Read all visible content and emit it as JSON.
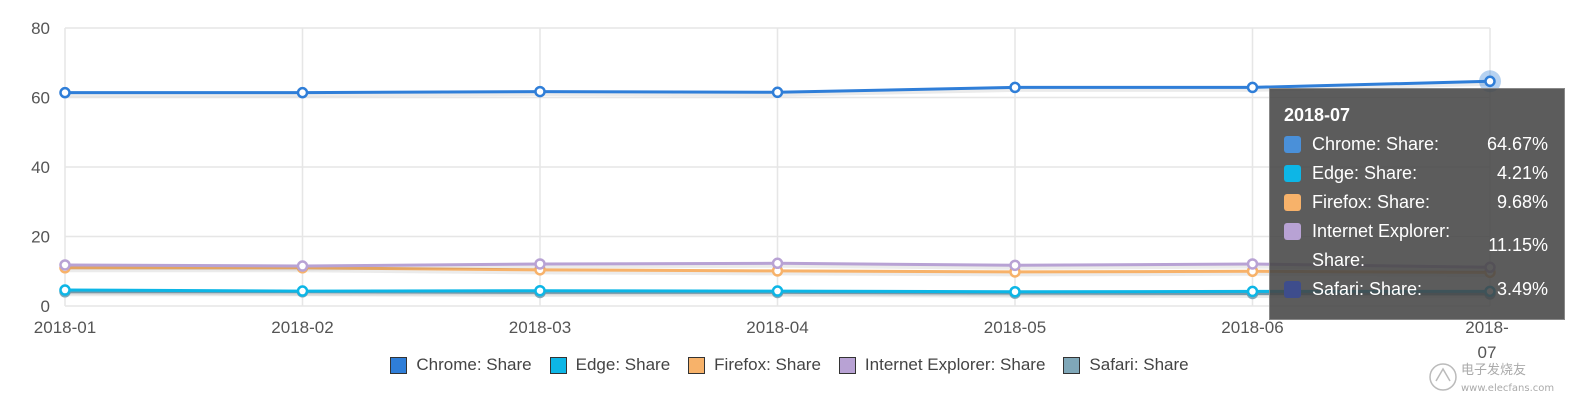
{
  "chart_data": {
    "type": "line",
    "x": [
      "2018-01",
      "2018-02",
      "2018-03",
      "2018-04",
      "2018-05",
      "2018-06",
      "2018-07"
    ],
    "yticks": [
      "80",
      "60",
      "40",
      "20",
      "0"
    ],
    "ylim": [
      0,
      80
    ],
    "grid": true,
    "legend_position": "bottom",
    "series": [
      {
        "name": "Chrome: Share",
        "color": "#2f7ed8",
        "values": [
          61.4,
          61.4,
          61.7,
          61.5,
          62.9,
          62.9,
          64.67
        ]
      },
      {
        "name": "Edge: Share",
        "color": "#0db6e6",
        "values": [
          4.6,
          4.3,
          4.4,
          4.3,
          4.1,
          4.2,
          4.21
        ]
      },
      {
        "name": "Firefox: Share",
        "color": "#f7b26a",
        "values": [
          11.0,
          11.0,
          10.4,
          10.1,
          9.8,
          10.0,
          9.68
        ]
      },
      {
        "name": "Internet Explorer: Share",
        "color": "#b8a2d4",
        "values": [
          11.8,
          11.5,
          12.1,
          12.3,
          11.7,
          12.1,
          11.15
        ]
      },
      {
        "name": "Safari: Share",
        "color": "#7fa7b8",
        "values": [
          4.1,
          4.1,
          3.9,
          3.9,
          3.7,
          3.6,
          3.49
        ]
      }
    ]
  },
  "tooltip": {
    "title": "2018-07",
    "rows": [
      {
        "label": "Chrome: Share:",
        "value": "64.67%",
        "color": "#4a90d9"
      },
      {
        "label": "Edge: Share:",
        "value": "4.21%",
        "color": "#0db6e6"
      },
      {
        "label": "Firefox: Share:",
        "value": "9.68%",
        "color": "#f7b26a"
      },
      {
        "label": "Internet Explorer: Share:",
        "value": "11.15%",
        "color": "#b8a2d4"
      },
      {
        "label": "Safari: Share:",
        "value": "3.49%",
        "color": "#3e4d8c"
      }
    ]
  },
  "watermark": {
    "text": "电子发烧友",
    "site": "www.elecfans.com"
  }
}
